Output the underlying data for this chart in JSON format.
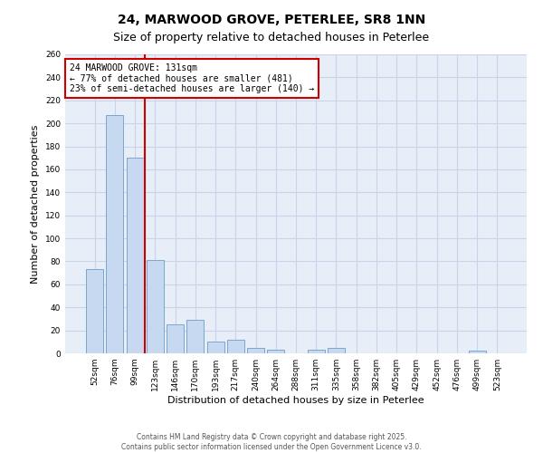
{
  "title_line1": "24, MARWOOD GROVE, PETERLEE, SR8 1NN",
  "title_line2": "Size of property relative to detached houses in Peterlee",
  "xlabel": "Distribution of detached houses by size in Peterlee",
  "ylabel": "Number of detached properties",
  "categories": [
    "52sqm",
    "76sqm",
    "99sqm",
    "123sqm",
    "146sqm",
    "170sqm",
    "193sqm",
    "217sqm",
    "240sqm",
    "264sqm",
    "288sqm",
    "311sqm",
    "335sqm",
    "358sqm",
    "382sqm",
    "405sqm",
    "429sqm",
    "452sqm",
    "476sqm",
    "499sqm",
    "523sqm"
  ],
  "values": [
    73,
    207,
    170,
    81,
    25,
    29,
    10,
    12,
    5,
    3,
    0,
    3,
    5,
    0,
    0,
    0,
    0,
    0,
    0,
    2,
    0
  ],
  "bar_color": "#c6d9f0",
  "bar_edge_color": "#7ca6cc",
  "grid_color": "#c8d4e8",
  "background_color": "#e8eef8",
  "vline_x_idx": 2.5,
  "vline_color": "#cc0000",
  "annotation_text": "24 MARWOOD GROVE: 131sqm\n← 77% of detached houses are smaller (481)\n23% of semi-detached houses are larger (140) →",
  "annotation_box_facecolor": "#ffffff",
  "annotation_box_edgecolor": "#cc0000",
  "ylim": [
    0,
    260
  ],
  "yticks": [
    0,
    20,
    40,
    60,
    80,
    100,
    120,
    140,
    160,
    180,
    200,
    220,
    240,
    260
  ],
  "footer_line1": "Contains HM Land Registry data © Crown copyright and database right 2025.",
  "footer_line2": "Contains public sector information licensed under the Open Government Licence v3.0.",
  "title_fontsize": 10,
  "subtitle_fontsize": 9,
  "tick_fontsize": 6.5,
  "label_fontsize": 8,
  "annotation_fontsize": 7,
  "footer_fontsize": 5.5
}
